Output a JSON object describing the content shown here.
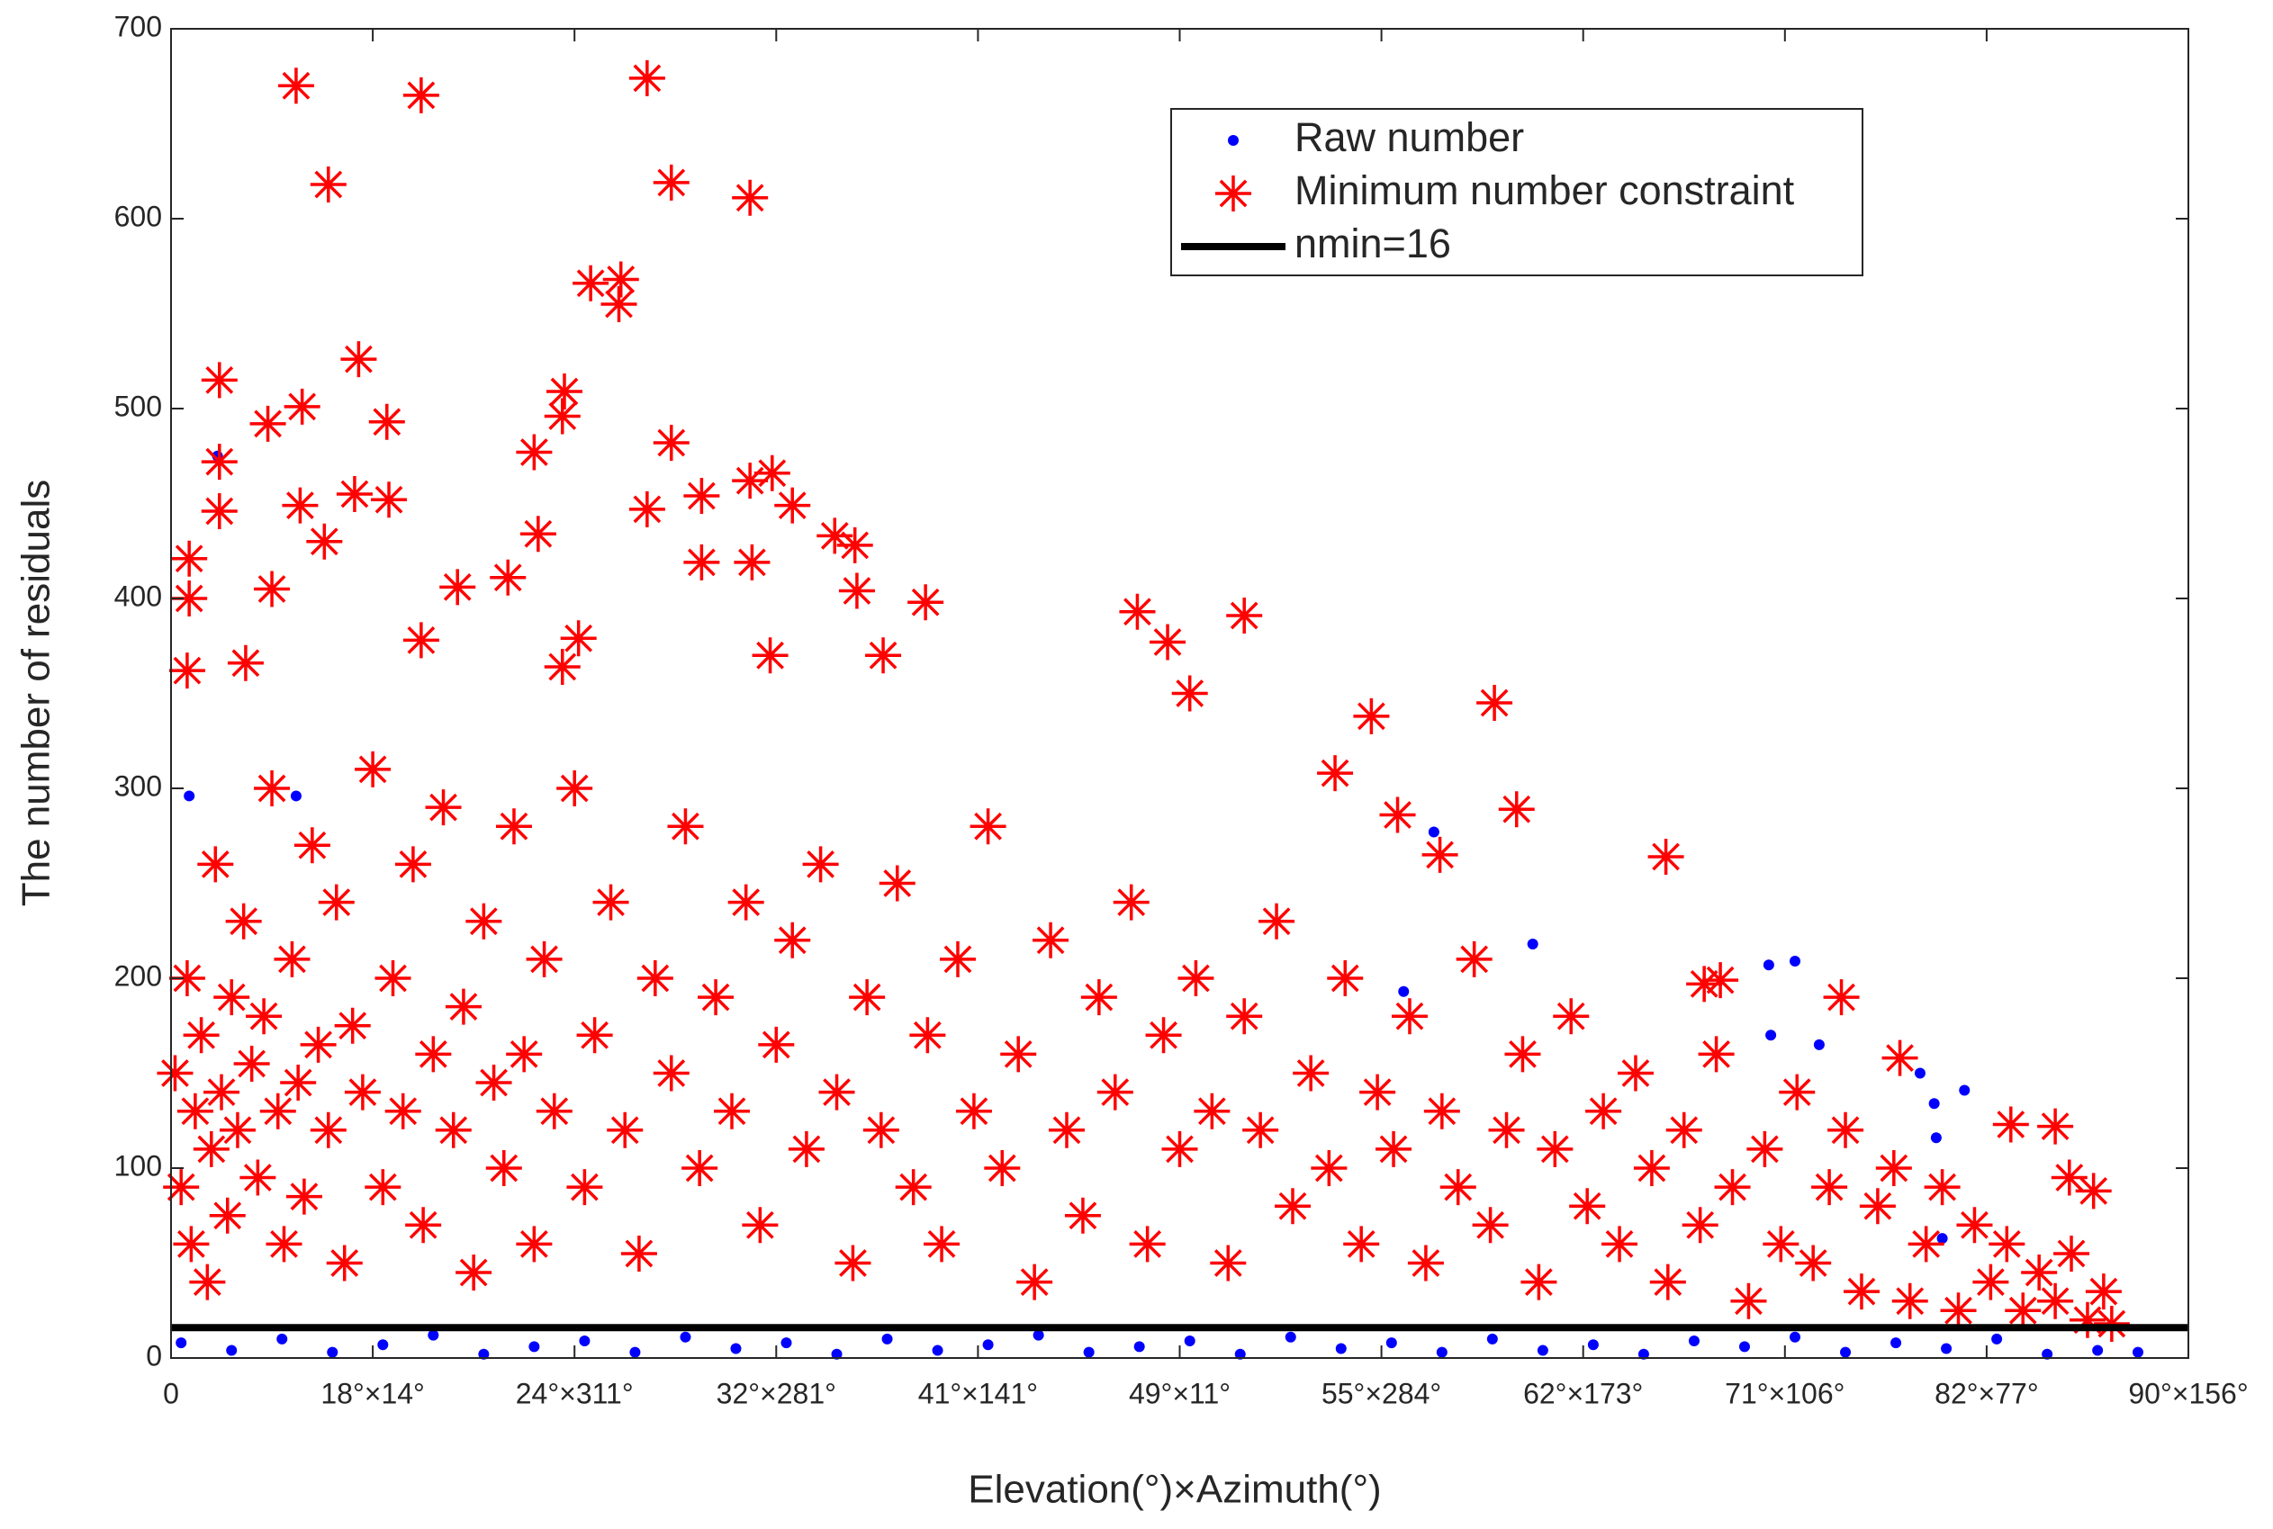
{
  "chart_data": {
    "type": "scatter",
    "xlabel": "Elevation(°)×Azimuth(°)",
    "ylabel": "The number of residuals",
    "xlim": [
      0,
      1000
    ],
    "ylim": [
      0,
      700
    ],
    "xticks": [
      0,
      {
        "value": 100,
        "label": "18°×14°"
      },
      {
        "value": 200,
        "label": "24°×311°"
      },
      {
        "value": 300,
        "label": "32°×281°"
      },
      {
        "value": 400,
        "label": "41°×141°"
      },
      {
        "value": 500,
        "label": "49°×11°"
      },
      {
        "value": 600,
        "label": "55°×284°"
      },
      {
        "value": 700,
        "label": "62°×173°"
      },
      {
        "value": 800,
        "label": "71°×106°"
      },
      {
        "value": 900,
        "label": "82°×77°"
      },
      {
        "value": 1000,
        "label": "90°×156°"
      }
    ],
    "yticks": [
      0,
      100,
      200,
      300,
      400,
      500,
      600,
      700
    ],
    "legend": "upper right",
    "series": [
      {
        "name": "Raw number",
        "color": "#0000ff",
        "marker": "dot",
        "x": [
          23,
          9,
          62,
          626,
          611,
          675,
          792,
          805,
          793,
          817,
          867,
          874,
          875,
          889,
          878,
          5,
          30,
          55,
          80,
          105,
          130,
          155,
          180,
          205,
          230,
          255,
          280,
          305,
          330,
          355,
          380,
          405,
          430,
          455,
          480,
          505,
          530,
          555,
          580,
          605,
          630,
          655,
          680,
          705,
          730,
          755,
          780,
          805,
          830,
          855,
          880,
          905,
          930,
          955,
          975
        ],
        "y": [
          475,
          296,
          296,
          277,
          193,
          218,
          207,
          209,
          170,
          165,
          150,
          134,
          116,
          141,
          63,
          8,
          4,
          10,
          3,
          7,
          12,
          2,
          6,
          9,
          3,
          11,
          5,
          8,
          2,
          10,
          4,
          7,
          12,
          3,
          6,
          9,
          2,
          11,
          5,
          8,
          3,
          10,
          4,
          7,
          2,
          9,
          6,
          11,
          3,
          8,
          5,
          10,
          2,
          4,
          3
        ]
      },
      {
        "name": "Minimum number constraint",
        "color": "#ff0000",
        "marker": "star",
        "x": [
          62,
          124,
          236,
          78,
          248,
          287,
          208,
          223,
          222,
          93,
          24,
          195,
          194,
          65,
          48,
          107,
          180,
          24,
          248,
          298,
          287,
          263,
          308,
          236,
          24,
          64,
          91,
          108,
          9,
          76,
          182,
          329,
          339,
          263,
          288,
          9,
          50,
          142,
          167,
          340,
          374,
          479,
          494,
          532,
          505,
          124,
          202,
          194,
          37,
          8,
          656,
          353,
          297,
          595,
          577,
          667,
          741,
          629,
          608,
          760,
          768,
          828,
          857,
          912,
          934,
          941,
          953,
          2,
          5,
          8,
          10,
          12,
          15,
          18,
          20,
          22,
          25,
          28,
          30,
          33,
          36,
          40,
          43,
          46,
          50,
          53,
          56,
          60,
          63,
          66,
          70,
          73,
          78,
          82,
          86,
          90,
          95,
          100,
          105,
          110,
          115,
          120,
          125,
          130,
          135,
          140,
          145,
          150,
          155,
          160,
          165,
          170,
          175,
          180,
          185,
          190,
          200,
          205,
          210,
          218,
          225,
          232,
          240,
          248,
          255,
          262,
          270,
          278,
          285,
          292,
          300,
          308,
          315,
          322,
          330,
          338,
          345,
          352,
          360,
          368,
          375,
          382,
          390,
          398,
          405,
          412,
          420,
          428,
          436,
          444,
          452,
          460,
          468,
          476,
          484,
          492,
          500,
          508,
          516,
          524,
          532,
          540,
          548,
          556,
          565,
          574,
          582,
          590,
          598,
          606,
          614,
          622,
          630,
          638,
          646,
          654,
          662,
          670,
          678,
          686,
          694,
          702,
          710,
          718,
          726,
          734,
          742,
          750,
          758,
          766,
          774,
          782,
          790,
          798,
          806,
          814,
          822,
          830,
          838,
          846,
          854,
          862,
          870,
          878,
          886,
          894,
          902,
          910,
          918,
          926,
          934,
          942,
          950,
          958,
          962
        ],
        "y": [
          670,
          665,
          674,
          618,
          619,
          611,
          566,
          568,
          555,
          526,
          515,
          509,
          496,
          501,
          492,
          493,
          477,
          472,
          482,
          466,
          462,
          454,
          449,
          447,
          446,
          449,
          455,
          452,
          421,
          430,
          434,
          433,
          428,
          419,
          419,
          400,
          405,
          406,
          411,
          404,
          398,
          393,
          377,
          391,
          350,
          378,
          379,
          364,
          366,
          362,
          345,
          370,
          370,
          338,
          308,
          289,
          264,
          265,
          286,
          197,
          199,
          190,
          158,
          123,
          122,
          95,
          88,
          150,
          90,
          200,
          60,
          130,
          170,
          40,
          110,
          260,
          140,
          75,
          190,
          120,
          230,
          155,
          95,
          180,
          300,
          130,
          60,
          210,
          145,
          85,
          270,
          165,
          120,
          240,
          50,
          175,
          140,
          310,
          90,
          200,
          130,
          260,
          70,
          160,
          290,
          120,
          185,
          45,
          230,
          145,
          100,
          280,
          160,
          60,
          210,
          130,
          300,
          90,
          170,
          240,
          120,
          55,
          200,
          150,
          280,
          100,
          190,
          130,
          240,
          70,
          165,
          220,
          110,
          260,
          140,
          50,
          190,
          120,
          250,
          90,
          170,
          60,
          210,
          130,
          280,
          100,
          160,
          40,
          220,
          120,
          75,
          190,
          140,
          240,
          60,
          170,
          110,
          200,
          130,
          50,
          180,
          120,
          230,
          80,
          150,
          100,
          200,
          60,
          140,
          110,
          180,
          50,
          130,
          90,
          210,
          70,
          120,
          160,
          40,
          110,
          180,
          80,
          130,
          60,
          150,
          100,
          40,
          120,
          70,
          160,
          90,
          30,
          110,
          60,
          140,
          50,
          90,
          120,
          35,
          80,
          100,
          30,
          60,
          90,
          25,
          70,
          40,
          60,
          25,
          45,
          30,
          55,
          20,
          35,
          18
        ]
      },
      {
        "name": "nmin=16",
        "color": "#000000",
        "marker": "line",
        "x": [
          0,
          1000
        ],
        "y": [
          16,
          16
        ]
      }
    ]
  }
}
